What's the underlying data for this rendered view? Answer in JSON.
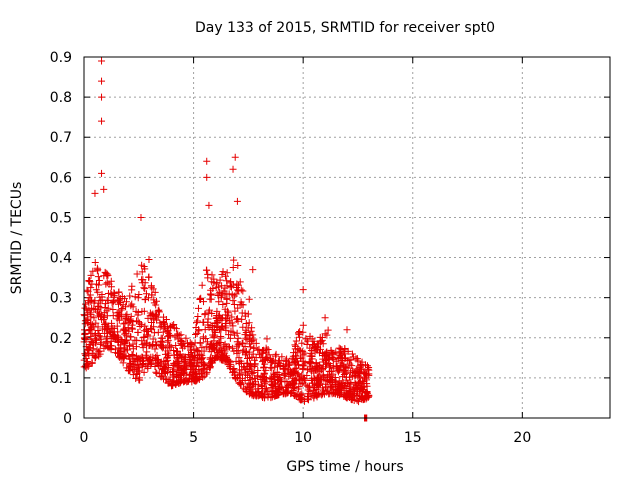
{
  "chart_data": {
    "type": "scatter",
    "title": "Day 133 of 2015, SRMTID for receiver spt0",
    "xlabel": "GPS time / hours",
    "ylabel": "SRMTID / TECUs",
    "xlim": [
      0,
      24
    ],
    "ylim": [
      0,
      0.9
    ],
    "xticks": [
      0,
      5,
      10,
      15,
      20
    ],
    "yticks": [
      0,
      0.1,
      0.2,
      0.3,
      0.4,
      0.5,
      0.6,
      0.7,
      0.8,
      0.9
    ],
    "grid": true,
    "legend": "none",
    "marker": "+",
    "color": "#e60000",
    "x_range_of_data": [
      0,
      13
    ],
    "zero_value_cluster": {
      "x_from": 12.8,
      "x_to": 12.9,
      "y": 0
    },
    "highlight_points": [
      {
        "x": 0.8,
        "y": 0.89
      },
      {
        "x": 0.8,
        "y": 0.84
      },
      {
        "x": 0.8,
        "y": 0.8
      },
      {
        "x": 0.8,
        "y": 0.74
      },
      {
        "x": 0.8,
        "y": 0.61
      },
      {
        "x": 0.9,
        "y": 0.57
      },
      {
        "x": 0.5,
        "y": 0.56
      },
      {
        "x": 2.6,
        "y": 0.5
      },
      {
        "x": 5.6,
        "y": 0.64
      },
      {
        "x": 5.6,
        "y": 0.6
      },
      {
        "x": 5.7,
        "y": 0.53
      },
      {
        "x": 6.9,
        "y": 0.65
      },
      {
        "x": 6.8,
        "y": 0.62
      },
      {
        "x": 7.0,
        "y": 0.54
      },
      {
        "x": 7.7,
        "y": 0.37
      },
      {
        "x": 10.0,
        "y": 0.32
      },
      {
        "x": 11.0,
        "y": 0.25
      },
      {
        "x": 12.0,
        "y": 0.22
      }
    ],
    "envelope": {
      "x": [
        0.0,
        0.5,
        1.0,
        1.5,
        2.0,
        2.5,
        3.0,
        3.5,
        4.0,
        4.5,
        5.0,
        5.5,
        6.0,
        6.5,
        7.0,
        7.5,
        8.0,
        8.5,
        9.0,
        9.5,
        10.0,
        10.5,
        11.0,
        11.5,
        12.0,
        12.5,
        13.0
      ],
      "low": [
        0.12,
        0.14,
        0.18,
        0.16,
        0.12,
        0.09,
        0.13,
        0.1,
        0.08,
        0.09,
        0.09,
        0.1,
        0.15,
        0.14,
        0.09,
        0.06,
        0.05,
        0.05,
        0.06,
        0.06,
        0.04,
        0.05,
        0.06,
        0.06,
        0.05,
        0.04,
        0.05
      ],
      "high": [
        0.3,
        0.45,
        0.4,
        0.35,
        0.32,
        0.45,
        0.4,
        0.3,
        0.26,
        0.22,
        0.2,
        0.45,
        0.38,
        0.42,
        0.46,
        0.32,
        0.22,
        0.19,
        0.17,
        0.18,
        0.29,
        0.22,
        0.24,
        0.2,
        0.2,
        0.17,
        0.14
      ]
    }
  }
}
